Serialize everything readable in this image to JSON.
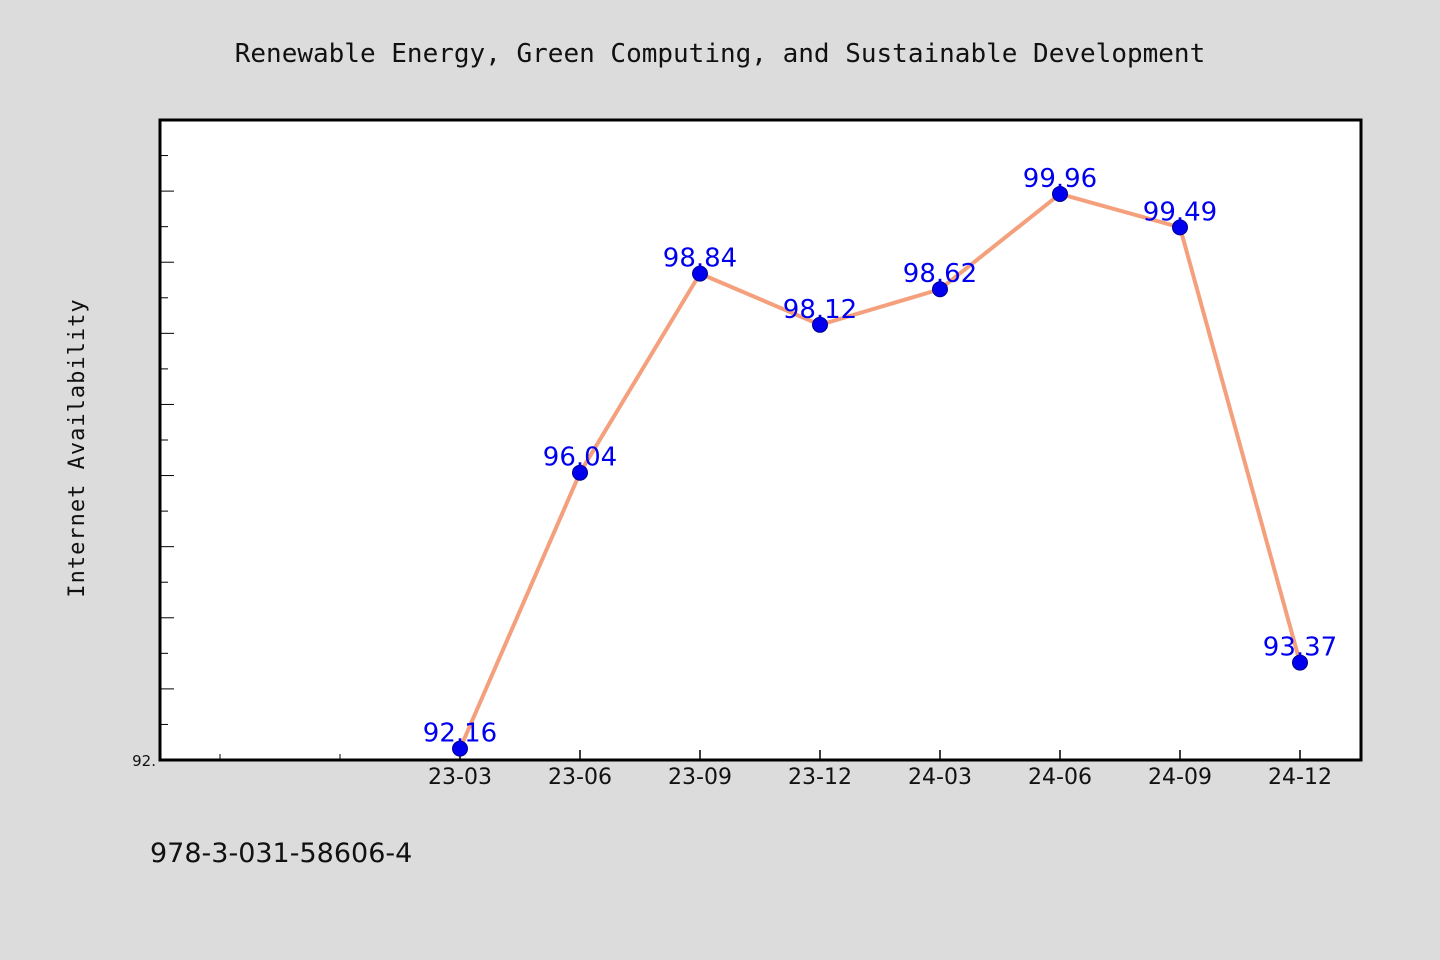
{
  "chart_data": {
    "type": "line",
    "title": "Renewable Energy, Green Computing, and Sustainable Development",
    "ylabel": "Internet Availability",
    "xlabel": "",
    "ytick_label": "92.",
    "footer": "978-3-031-58606-4",
    "categories": [
      "23-03",
      "23-06",
      "23-09",
      "23-12",
      "24-03",
      "24-06",
      "24-09",
      "24-12"
    ],
    "series": [
      {
        "values": [
          92.16,
          96.04,
          98.84,
          98.12,
          98.62,
          99.96,
          99.49,
          93.37
        ]
      }
    ],
    "data_labels": [
      "92.16",
      "96.04",
      "98.84",
      "98.12",
      "98.62",
      "99.96",
      "99.49",
      "93.37"
    ],
    "ylim": [
      92.0,
      101.0
    ],
    "grid": false,
    "colors": {
      "line": "#f4a07d",
      "marker": "#0000ee",
      "label": "#0000ee",
      "background": "#dcdcdc",
      "plot": "#ffffff"
    }
  }
}
